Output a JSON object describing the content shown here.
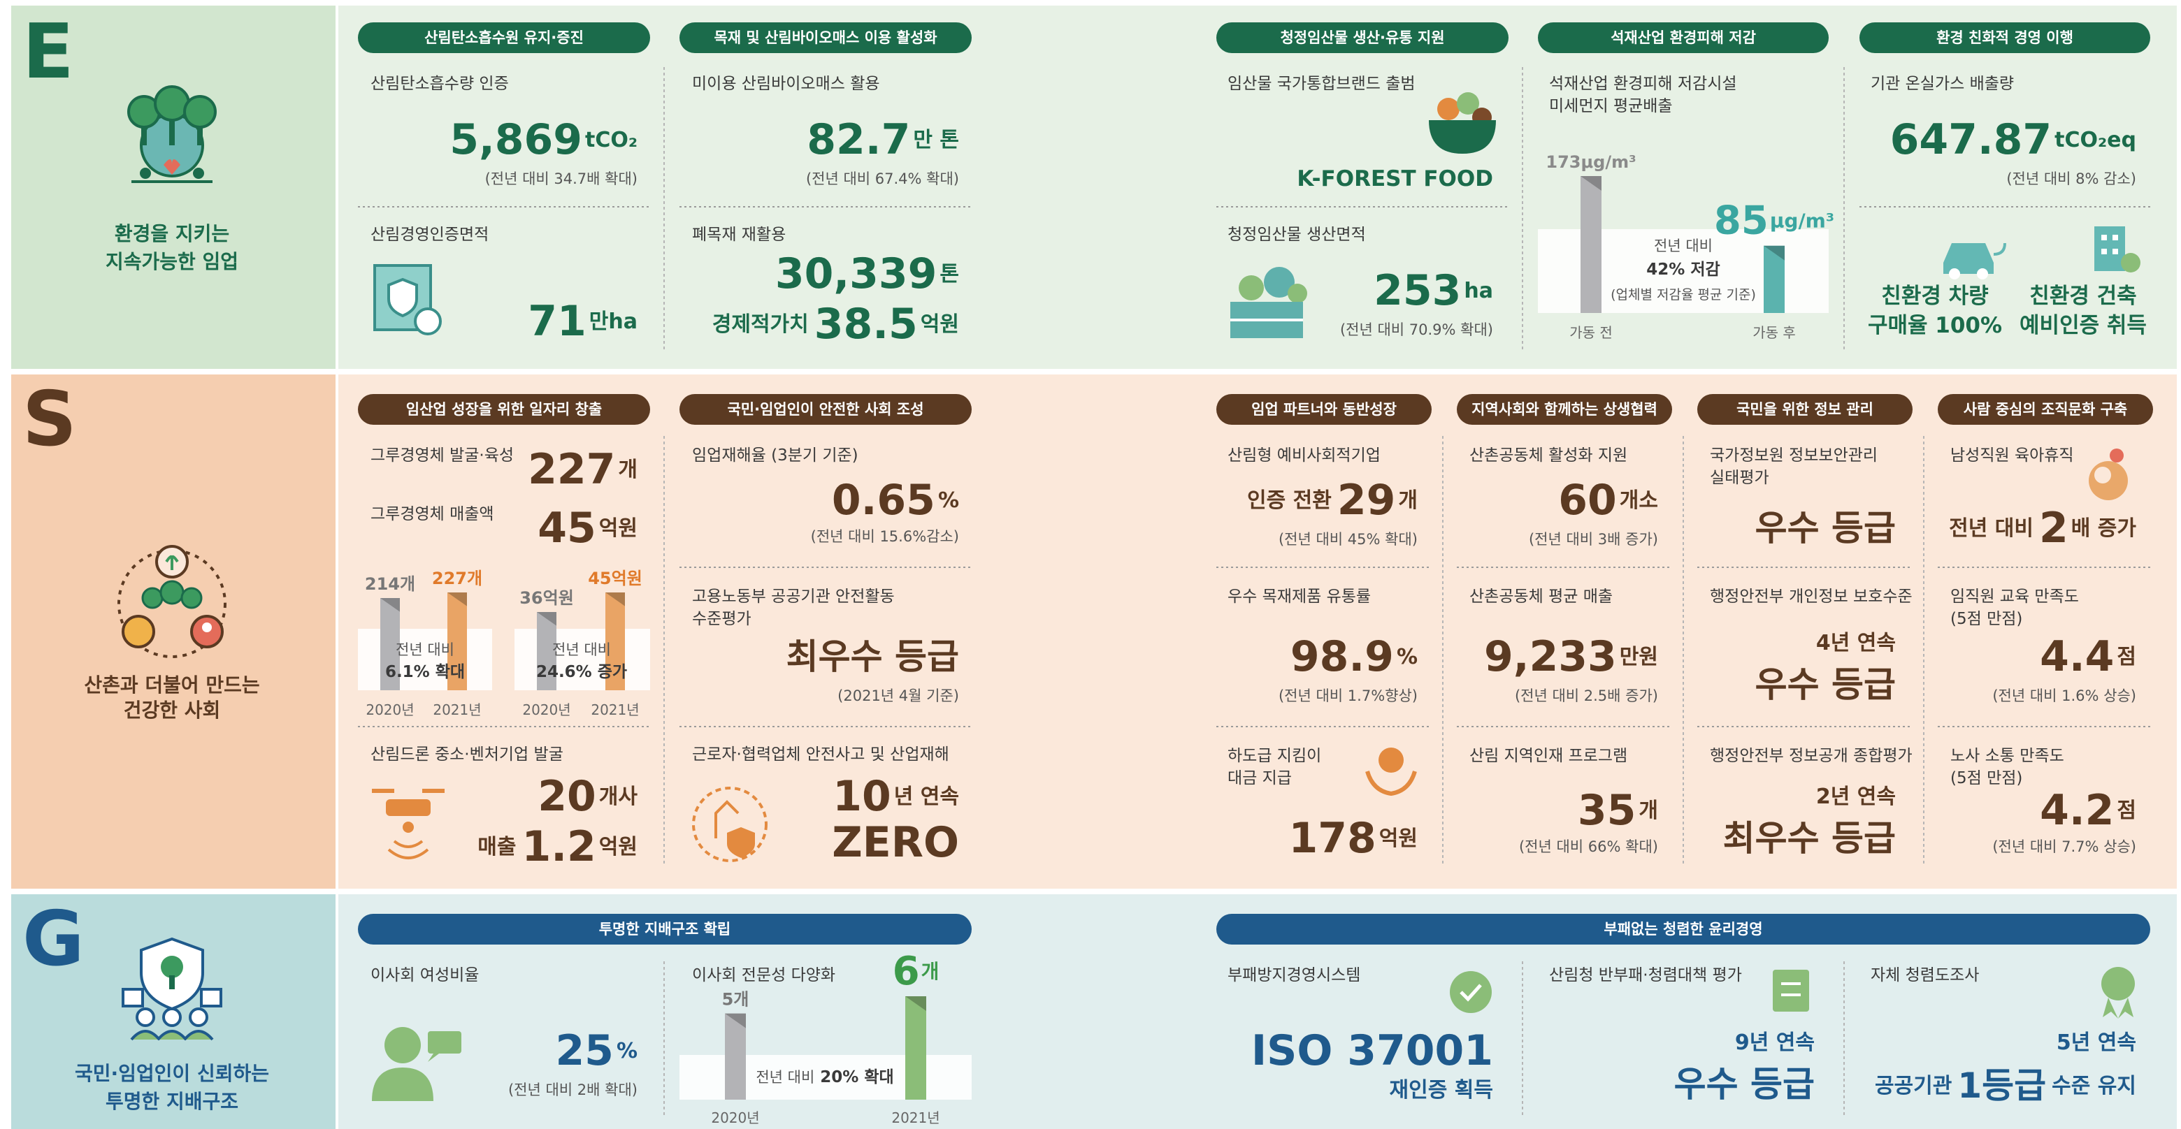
{
  "E": {
    "letter": "E",
    "caption": [
      "환경을 지키는",
      "지속가능한 임업"
    ],
    "headers": [
      "산림탄소흡수원 유지·증진",
      "목재 및 산림바이오매스 이용 활성화",
      "청정임산물 생산·유통 지원",
      "석재산업 환경피해 저감",
      "환경 친화적 경영 이행"
    ],
    "items": [
      {
        "label": "산림탄소흡수량 인증",
        "value": "5,869",
        "unit": "tCO₂",
        "note": "(전년 대비 34.7배 확대)"
      },
      {
        "label": "산림경영인증면적",
        "value": "71",
        "unit": "만ha"
      },
      {
        "label": "미이용 산림바이오매스 활용",
        "value": "82.7",
        "unit": "만 톤",
        "note": "(전년 대비 67.4% 확대)"
      },
      {
        "label": "폐목재 재활용",
        "value": "30,339",
        "unit": "톤",
        "prefix2": "경제적가치",
        "value2": "38.5",
        "unit2": "억원"
      },
      {
        "label": "임산물 국가통합브랜드 출범",
        "value": "K-FOREST FOOD"
      },
      {
        "label": "청정임산물 생산면적",
        "value": "253",
        "unit": "ha",
        "note": "(전년 대비 70.9% 확대)"
      },
      {
        "label": [
          "석재산업 환경피해 저감시설",
          "미세먼지 평균배출"
        ],
        "chart": {
          "categories": [
            "가동 전",
            "가동 후"
          ],
          "bars": [
            {
              "value": 173,
              "label": "173μg/m³"
            },
            {
              "value": 85,
              "label": "85",
              "unit": "μg/m³"
            }
          ],
          "note": [
            "전년 대비",
            "42% 저감",
            "(업체별 저감율 평균 기준)"
          ]
        }
      },
      {
        "label": "기관 온실가스 배출량",
        "value": "647.87",
        "unit": "tCO₂eq",
        "note": "(전년 대비 8% 감소)"
      },
      {
        "label": [
          "친환경 차량",
          "구매율 100%"
        ]
      },
      {
        "label": [
          "친환경 건축",
          "예비인증 취득"
        ]
      }
    ]
  },
  "S": {
    "letter": "S",
    "caption": [
      "산촌과 더불어 만드는",
      "건강한 사회"
    ],
    "headers": [
      "임산업 성장을 위한 일자리 창출",
      "국민·임업인이 안전한 사회 조성",
      "임업 파트너와 동반성장",
      "지역사회와 함께하는 상생협력",
      "국민을 위한 정보 관리",
      "사람 중심의 조직문화 구축"
    ],
    "items": [
      {
        "label": "그루경영체 발굴·육성",
        "value": "227",
        "unit": "개"
      },
      {
        "label": "그루경영체 매출액",
        "value": "45",
        "unit": "억원"
      },
      {
        "chart": {
          "categories": [
            "2020년",
            "2021년"
          ],
          "bars": [
            {
              "value": 214,
              "label": "214개"
            },
            {
              "value": 227,
              "label": "227개"
            }
          ],
          "note": [
            "전년 대비",
            "6.1% 확대"
          ]
        }
      },
      {
        "chart": {
          "categories": [
            "2020년",
            "2021년"
          ],
          "bars": [
            {
              "value": 36,
              "label": "36억원"
            },
            {
              "value": 45,
              "label": "45억원"
            }
          ],
          "note": [
            "전년 대비",
            "24.6% 증가"
          ]
        }
      },
      {
        "label": "산림드론 중소·벤처기업 발굴",
        "value": "20",
        "unit": "개사",
        "prefix2": "매출",
        "value2": "1.2",
        "unit2": "억원"
      },
      {
        "label": "임업재해율 (3분기 기준)",
        "value": "0.65",
        "unit": "%",
        "note": "(전년 대비 15.6%감소)"
      },
      {
        "label": [
          "고용노동부 공공기관 안전활동",
          "수준평가"
        ],
        "value": "최우수 등급",
        "note": "(2021년 4월 기준)"
      },
      {
        "label": "근로자·협력업체 안전사고 및 산업재해",
        "value": "10",
        "unit": "년 연속",
        "value2": "ZERO"
      },
      {
        "label": "산림형 예비사회적기업",
        "prefix": "인증 전환",
        "value": "29",
        "unit": "개",
        "note": "(전년 대비 45% 확대)"
      },
      {
        "label": "우수 목재제품 유통률",
        "value": "98.9",
        "unit": "%",
        "note": "(전년 대비 1.7%향상)"
      },
      {
        "label": [
          "하도급 지킴이",
          "대금 지급"
        ],
        "value": "178",
        "unit": "억원"
      },
      {
        "label": "산촌공동체 활성화 지원",
        "value": "60",
        "unit": "개소",
        "note": "(전년 대비 3배 증가)"
      },
      {
        "label": "산촌공동체 평균 매출",
        "value": "9,233",
        "unit": "만원",
        "note": "(전년 대비 2.5배 증가)"
      },
      {
        "label": "산림 지역인재 프로그램",
        "value": "35",
        "unit": "개",
        "note": "(전년 대비 66% 확대)"
      },
      {
        "label": [
          "국가정보원 정보보안관리",
          "실태평가"
        ],
        "value": "우수 등급"
      },
      {
        "label": "행정안전부 개인정보 보호수준",
        "prefix": "4년 연속",
        "value": "우수 등급"
      },
      {
        "label": "행정안전부 정보공개 종합평가",
        "prefix": "2년 연속",
        "value": "최우수 등급"
      },
      {
        "label": "남성직원 육아휴직",
        "prefix": "전년 대비",
        "value": "2",
        "unit": "배 증가"
      },
      {
        "label": [
          "임직원 교육 만족도",
          "(5점 만점)"
        ],
        "value": "4.4",
        "unit": "점",
        "note": "(전년 대비 1.6% 상승)"
      },
      {
        "label": [
          "노사 소통 만족도",
          "(5점 만점)"
        ],
        "value": "4.2",
        "unit": "점",
        "note": "(전년 대비 7.7% 상승)"
      }
    ]
  },
  "G": {
    "letter": "G",
    "caption": [
      "국민·임업인이 신뢰하는",
      "투명한 지배구조"
    ],
    "headers": [
      "투명한 지배구조 확립",
      "부패없는 청렴한 윤리경영"
    ],
    "items": [
      {
        "label": "이사회 여성비율",
        "value": "25",
        "unit": "%",
        "note": "(전년 대비 2배 확대)"
      },
      {
        "label": "이사회 전문성 다양화",
        "chart": {
          "categories": [
            "2020년",
            "2021년"
          ],
          "bars": [
            {
              "value": 5,
              "label": "5개"
            },
            {
              "value": 6,
              "label": "6",
              "unit": "개"
            }
          ],
          "note": [
            "전년 대비",
            "20% 확대"
          ]
        }
      },
      {
        "label": "부패방지경영시스템",
        "value": "ISO 37001",
        "note": "재인증 획득"
      },
      {
        "label": "산림청 반부패·청렴대책 평가",
        "prefix": "9년 연속",
        "value": "우수 등급"
      },
      {
        "label": "자체 청렴도조사",
        "prefix": "5년 연속",
        "prefix2": "공공기관",
        "value": "1등급",
        "unit": "수준 유지"
      }
    ]
  }
}
